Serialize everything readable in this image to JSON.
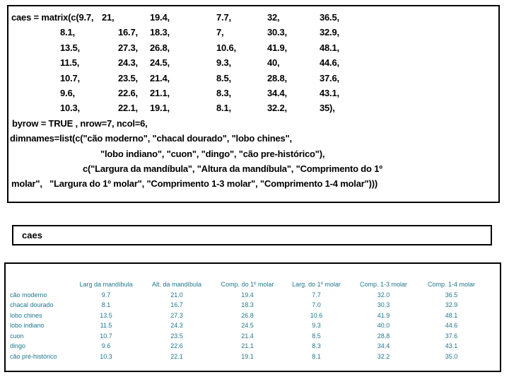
{
  "slide": {
    "background": "#ffffff",
    "border_color": "#000000",
    "code_text_color": "#000000"
  },
  "code_box": {
    "matrix_prefix": "caes = matrix(c(9.7,",
    "matrix_rows": [
      [
        "21,",
        "19.4,",
        "7.7,",
        "32,",
        "36.5,"
      ],
      [
        "8.1,",
        "16.7,",
        "18.3,",
        "7,",
        "30.3,",
        "32.9,"
      ],
      [
        "13.5,",
        "27.3,",
        "26.8,",
        "10.6,",
        "41.9,",
        "48.1,"
      ],
      [
        "11.5,",
        "24.3,",
        "24.5,",
        "9.3,",
        "40,",
        "44.6,"
      ],
      [
        "10.7,",
        "23.5,",
        "21.4,",
        "8.5,",
        "28.8,",
        "37.6,"
      ],
      [
        "9.6,",
        "22.6,",
        "21.1,",
        "8.3,",
        "34.4,",
        "43.1,"
      ],
      [
        "10.3,",
        "22.1,",
        "19.1,",
        "8.1,",
        "32.2,",
        "35),"
      ]
    ],
    "byrow_line": "byrow = TRUE , nrow=7, ncol=6,",
    "dimnames_lines": [
      "dimnames=list(c(\"cão moderno\", \"chacal dourado\", \"lobo chines\",",
      "\"lobo indiano\", \"cuon\", \"dingo\", \"cão pre-histórico\"),",
      "c(\"Largura da mandíbula\", \"Altura da mandíbula\", \"Comprimento do 1º",
      "molar\",   \"Largura do 1º molar\", \"Comprimento 1-3 molar\", \"Comprimento 1-4 molar\")))"
    ]
  },
  "command_box": {
    "text": "caes"
  },
  "output_table": {
    "text_color": "#20788E",
    "columns": [
      "Larg da mandíbula",
      "Alt. da mandíbula",
      "Comp. do 1º molar",
      "Larg. do 1º molar",
      "Comp. 1-3 molar",
      "Comp. 1-4 molar"
    ],
    "rows": [
      {
        "label": "cão moderno",
        "values": [
          "9.7",
          "21.0",
          "19.4",
          "7.7",
          "32.0",
          "36.5"
        ]
      },
      {
        "label": "chacal dourado",
        "values": [
          "8.1",
          "16.7",
          "18.3",
          "7.0",
          "30.3",
          "32.9"
        ]
      },
      {
        "label": "lobo chines",
        "values": [
          "13.5",
          "27.3",
          "26.8",
          "10.6",
          "41.9",
          "48.1"
        ]
      },
      {
        "label": "lobo indiano",
        "values": [
          "11.5",
          "24.3",
          "24.5",
          "9.3",
          "40.0",
          "44.6"
        ]
      },
      {
        "label": "cuon",
        "values": [
          "10.7",
          "23.5",
          "21.4",
          "8.5",
          "28.8",
          "37.6"
        ]
      },
      {
        "label": "dingo",
        "values": [
          "9.6",
          "22.6",
          "21.1",
          "8.3",
          "34.4",
          "43.1"
        ]
      },
      {
        "label": "cão pré-histórico",
        "values": [
          "10.3",
          "22.1",
          "19.1",
          "8.1",
          "32.2",
          "35.0"
        ]
      }
    ]
  }
}
